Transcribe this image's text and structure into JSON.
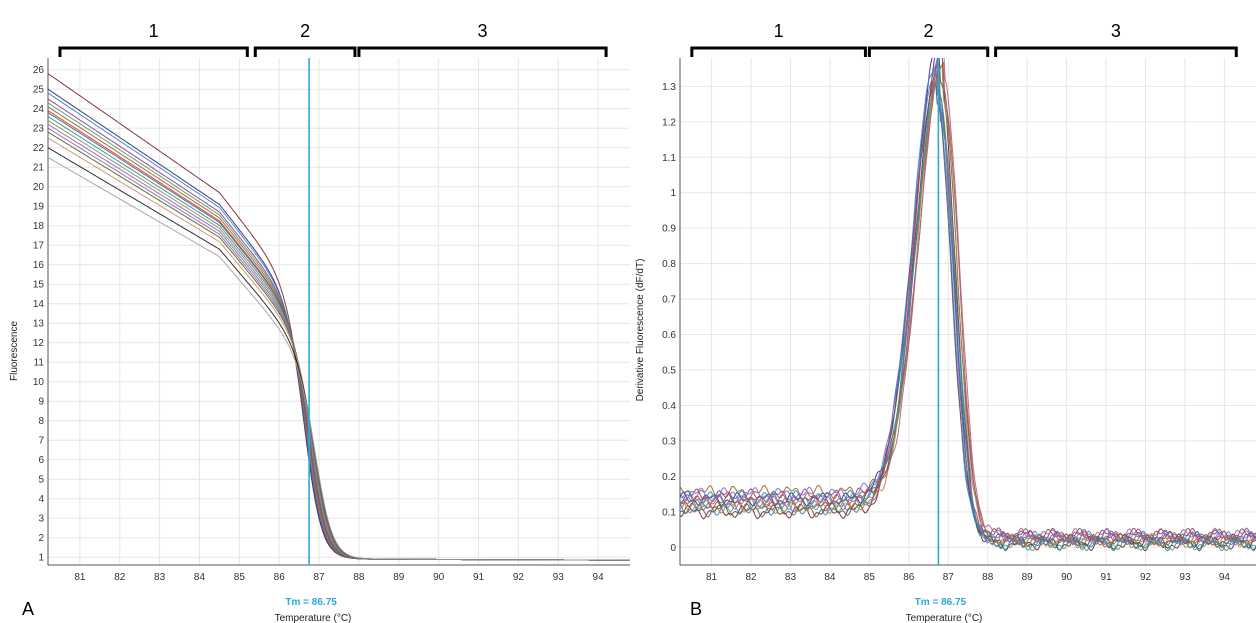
{
  "colors": {
    "tm_line": "#29a8e0",
    "grid": "#e6e6e6",
    "axis": "#555555",
    "bracket": "#000000",
    "curves": [
      "#7a1f1f",
      "#2a2a6a",
      "#3a7dc9",
      "#8c3a8c",
      "#4f9a6a",
      "#a35b2a",
      "#c43a3a",
      "#5a5a5a",
      "#1f8fb0",
      "#9a8a3a",
      "#6f6fd0",
      "#b05a90",
      "#2f6f2f",
      "#d08a6a",
      "#1a1a1a",
      "#a0a0a0"
    ]
  },
  "chart_data": [
    {
      "type": "line",
      "panel": "A",
      "title": "",
      "xlabel": "Temperature (°C)",
      "ylabel": "Fluorescence",
      "xlim": [
        80.2,
        94.8
      ],
      "ylim": [
        0.6,
        26.6
      ],
      "x_ticks": [
        81,
        82,
        83,
        84,
        85,
        86,
        87,
        88,
        89,
        90,
        91,
        92,
        93,
        94
      ],
      "y_ticks": [
        1,
        2,
        3,
        4,
        5,
        6,
        7,
        8,
        9,
        10,
        11,
        12,
        13,
        14,
        15,
        16,
        17,
        18,
        19,
        20,
        21,
        22,
        23,
        24,
        25,
        26
      ],
      "grid": true,
      "tm_value": 86.75,
      "tm_label": "Tm = 86.75",
      "regions": [
        {
          "label": "1",
          "x_start": 80.5,
          "x_end": 85.2
        },
        {
          "label": "2",
          "x_start": 85.4,
          "x_end": 87.9
        },
        {
          "label": "3",
          "x_start": 88.0,
          "x_end": 94.2
        }
      ],
      "series_count": 16,
      "series_start_fluorescence": [
        25.8,
        25.0,
        24.8,
        24.5,
        24.3,
        24.1,
        23.9,
        23.8,
        23.6,
        23.4,
        23.2,
        23.0,
        22.8,
        22.5,
        22.0,
        21.5
      ],
      "midpoint_range": [
        86.65,
        86.95
      ],
      "plateau_fluorescence": 0.9
    },
    {
      "type": "line",
      "panel": "B",
      "title": "",
      "xlabel": "Temperature (°C)",
      "ylabel": "Derivative Fluorescence (dF/dT)",
      "xlim": [
        80.2,
        94.8
      ],
      "ylim": [
        -0.05,
        1.38
      ],
      "x_ticks": [
        81,
        82,
        83,
        84,
        85,
        86,
        87,
        88,
        89,
        90,
        91,
        92,
        93,
        94
      ],
      "y_ticks": [
        0,
        0.1,
        0.2,
        0.3,
        0.4,
        0.5,
        0.6,
        0.7,
        0.8,
        0.9,
        1,
        1.1,
        1.2,
        1.3
      ],
      "y_tick_labels": [
        "0",
        "0.1",
        "0.2",
        "0.3",
        "0.4",
        "0.5",
        "0.6",
        "0.7",
        "0.8",
        "0.9",
        "1",
        "1.1",
        "1.2",
        "1.3"
      ],
      "grid": true,
      "tm_value": 86.75,
      "tm_label": "Tm = 86.75",
      "regions": [
        {
          "label": "1",
          "x_start": 80.5,
          "x_end": 84.9
        },
        {
          "label": "2",
          "x_start": 85.0,
          "x_end": 88.0
        },
        {
          "label": "3",
          "x_start": 88.2,
          "x_end": 94.3
        }
      ],
      "series_count": 12,
      "peak_heights": [
        1.35,
        1.32,
        1.31,
        1.3,
        1.29,
        1.28,
        1.27,
        1.26,
        1.25,
        1.3,
        1.28,
        1.33
      ],
      "peak_positions": [
        86.8,
        86.75,
        86.7,
        86.85,
        86.8,
        86.9,
        86.75,
        86.7,
        86.8,
        86.85,
        86.75,
        86.9
      ],
      "baseline_low_temp": [
        0.1,
        0.16
      ]
    }
  ],
  "panel_letters": [
    "A",
    "B"
  ]
}
